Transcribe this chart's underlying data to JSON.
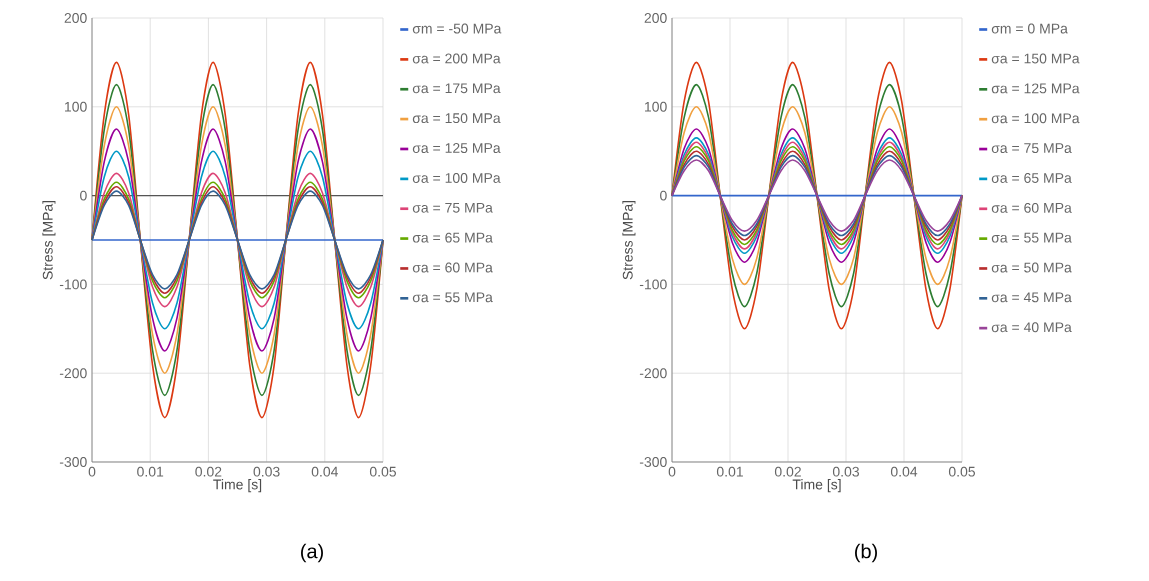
{
  "chart_data": [
    {
      "type": "line",
      "xlabel": "Time [s]",
      "ylabel": "Stress [MPa]",
      "annotations": [
        "(a)"
      ],
      "grid": true,
      "legend": "right",
      "xlim": [
        0,
        0.05
      ],
      "ylim": [
        -300,
        200
      ],
      "xticks": [
        0,
        0.01,
        0.02,
        0.03,
        0.04,
        0.05
      ],
      "yticks": [
        -300,
        -200,
        -100,
        0,
        100,
        200
      ],
      "ref_lines": [
        {
          "axis": "y",
          "value": 0,
          "color": "#555555"
        }
      ],
      "x": [
        0,
        0.0021,
        0.0042,
        0.0063,
        0.0083,
        0.0104,
        0.0125,
        0.0146,
        0.0167,
        0.0188,
        0.0208,
        0.0229,
        0.025,
        0.0271,
        0.0292,
        0.0313,
        0.0333,
        0.0354,
        0.0375,
        0.0396,
        0.0417,
        0.0438,
        0.0458,
        0.0479,
        0.05
      ],
      "series": [
        {
          "name": "σm = -50 MPa",
          "color": "#3366cc",
          "values": [
            -50,
            -50,
            -50,
            -50,
            -50,
            -50,
            -50,
            -50,
            -50,
            -50,
            -50,
            -50,
            -50,
            -50,
            -50,
            -50,
            -50,
            -50,
            -50,
            -50,
            -50,
            -50,
            -50,
            -50,
            -50
          ]
        },
        {
          "name": "σa = 200 MPa",
          "color": "#dc3912",
          "values": [
            -50,
            91,
            150,
            91,
            -50,
            -191,
            -250,
            -191,
            -50,
            91,
            150,
            91,
            -50,
            -191,
            -250,
            -191,
            -50,
            91,
            150,
            91,
            -50,
            -191,
            -250,
            -191,
            -50
          ]
        },
        {
          "name": "σa = 175 MPa",
          "color": "#2e7d32",
          "values": [
            -50,
            74,
            125,
            74,
            -50,
            -174,
            -225,
            -174,
            -50,
            74,
            125,
            74,
            -50,
            -174,
            -225,
            -174,
            -50,
            74,
            125,
            74,
            -50,
            -174,
            -225,
            -174,
            -50
          ]
        },
        {
          "name": "σa = 150 MPa",
          "color": "#f0a040",
          "values": [
            -50,
            56,
            100,
            56,
            -50,
            -156,
            -200,
            -156,
            -50,
            56,
            100,
            56,
            -50,
            -156,
            -200,
            -156,
            -50,
            56,
            100,
            56,
            -50,
            -156,
            -200,
            -156,
            -50
          ]
        },
        {
          "name": "σa = 125 MPa",
          "color": "#990099",
          "values": [
            -50,
            38,
            75,
            38,
            -50,
            -138,
            -175,
            -138,
            -50,
            38,
            75,
            38,
            -50,
            -138,
            -175,
            -138,
            -50,
            38,
            75,
            38,
            -50,
            -138,
            -175,
            -138,
            -50
          ]
        },
        {
          "name": "σa = 100 MPa",
          "color": "#0099c6",
          "values": [
            -50,
            21,
            50,
            21,
            -50,
            -121,
            -150,
            -121,
            -50,
            21,
            50,
            21,
            -50,
            -121,
            -150,
            -121,
            -50,
            21,
            50,
            21,
            -50,
            -121,
            -150,
            -121,
            -50
          ]
        },
        {
          "name": "σa = 75 MPa",
          "color": "#dd4477",
          "values": [
            -50,
            3,
            25,
            3,
            -50,
            -103,
            -125,
            -103,
            -50,
            3,
            25,
            3,
            -50,
            -103,
            -125,
            -103,
            -50,
            3,
            25,
            3,
            -50,
            -103,
            -125,
            -103,
            -50
          ]
        },
        {
          "name": "σa = 65 MPa",
          "color": "#66aa00",
          "values": [
            -50,
            -4,
            15,
            -4,
            -50,
            -96,
            -115,
            -96,
            -50,
            -4,
            15,
            -4,
            -50,
            -96,
            -115,
            -96,
            -50,
            -4,
            15,
            -4,
            -50,
            -96,
            -115,
            -96,
            -50
          ]
        },
        {
          "name": "σa = 60 MPa",
          "color": "#b82e2e",
          "values": [
            -50,
            -8,
            10,
            -8,
            -50,
            -92,
            -110,
            -92,
            -50,
            -8,
            10,
            -8,
            -50,
            -92,
            -110,
            -92,
            -50,
            -8,
            10,
            -8,
            -50,
            -92,
            -110,
            -92,
            -50
          ]
        },
        {
          "name": "σa = 55 MPa",
          "color": "#316395",
          "values": [
            -50,
            -11,
            5,
            -11,
            -50,
            -89,
            -105,
            -89,
            -50,
            -11,
            5,
            -11,
            -50,
            -89,
            -105,
            -89,
            -50,
            -11,
            5,
            -11,
            -50,
            -89,
            -105,
            -89,
            -50
          ]
        }
      ]
    },
    {
      "type": "line",
      "xlabel": "Time [s]",
      "ylabel": "Stress [MPa]",
      "annotations": [
        "(b)"
      ],
      "grid": true,
      "legend": "right",
      "xlim": [
        0,
        0.05
      ],
      "ylim": [
        -300,
        200
      ],
      "xticks": [
        0,
        0.01,
        0.02,
        0.03,
        0.04,
        0.05
      ],
      "yticks": [
        -300,
        -200,
        -100,
        0,
        100,
        200
      ],
      "x": [
        0,
        0.0021,
        0.0042,
        0.0063,
        0.0083,
        0.0104,
        0.0125,
        0.0146,
        0.0167,
        0.0188,
        0.0208,
        0.0229,
        0.025,
        0.0271,
        0.0292,
        0.0313,
        0.0333,
        0.0354,
        0.0375,
        0.0396,
        0.0417,
        0.0438,
        0.0458,
        0.0479,
        0.05
      ],
      "series": [
        {
          "name": "σm = 0 MPa",
          "color": "#3366cc",
          "values": [
            0,
            0,
            0,
            0,
            0,
            0,
            0,
            0,
            0,
            0,
            0,
            0,
            0,
            0,
            0,
            0,
            0,
            0,
            0,
            0,
            0,
            0,
            0,
            0,
            0
          ]
        },
        {
          "name": "σa = 150 MPa",
          "color": "#dc3912",
          "values": [
            0,
            106,
            150,
            106,
            0,
            -106,
            -150,
            -106,
            0,
            106,
            150,
            106,
            0,
            -106,
            -150,
            -106,
            0,
            106,
            150,
            106,
            0,
            -106,
            -150,
            -106,
            0
          ]
        },
        {
          "name": "σa = 125 MPa",
          "color": "#2e7d32",
          "values": [
            0,
            88,
            125,
            88,
            0,
            -88,
            -125,
            -88,
            0,
            88,
            125,
            88,
            0,
            -88,
            -125,
            -88,
            0,
            88,
            125,
            88,
            0,
            -88,
            -125,
            -88,
            0
          ]
        },
        {
          "name": "σa = 100 MPa",
          "color": "#f0a040",
          "values": [
            0,
            71,
            100,
            71,
            0,
            -71,
            -100,
            -71,
            0,
            71,
            100,
            71,
            0,
            -71,
            -100,
            -71,
            0,
            71,
            100,
            71,
            0,
            -71,
            -100,
            -71,
            0
          ]
        },
        {
          "name": "σa = 75 MPa",
          "color": "#990099",
          "values": [
            0,
            53,
            75,
            53,
            0,
            -53,
            -75,
            -53,
            0,
            53,
            75,
            53,
            0,
            -53,
            -75,
            -53,
            0,
            53,
            75,
            53,
            0,
            -53,
            -75,
            -53,
            0
          ]
        },
        {
          "name": "σa = 65 MPa",
          "color": "#0099c6",
          "values": [
            0,
            46,
            65,
            46,
            0,
            -46,
            -65,
            -46,
            0,
            46,
            65,
            46,
            0,
            -46,
            -65,
            -46,
            0,
            46,
            65,
            46,
            0,
            -46,
            -65,
            -46,
            0
          ]
        },
        {
          "name": "σa = 60 MPa",
          "color": "#dd4477",
          "values": [
            0,
            42,
            60,
            42,
            0,
            -42,
            -60,
            -42,
            0,
            42,
            60,
            42,
            0,
            -42,
            -60,
            -42,
            0,
            42,
            60,
            42,
            0,
            -42,
            -60,
            -42,
            0
          ]
        },
        {
          "name": "σa = 55 MPa",
          "color": "#66aa00",
          "values": [
            0,
            39,
            55,
            39,
            0,
            -39,
            -55,
            -39,
            0,
            39,
            55,
            39,
            0,
            -39,
            -55,
            -39,
            0,
            39,
            55,
            39,
            0,
            -39,
            -55,
            -39,
            0
          ]
        },
        {
          "name": "σa = 50 MPa",
          "color": "#b82e2e",
          "values": [
            0,
            35,
            50,
            35,
            0,
            -35,
            -50,
            -35,
            0,
            35,
            50,
            35,
            0,
            -35,
            -50,
            -35,
            0,
            35,
            50,
            35,
            0,
            -35,
            -50,
            -35,
            0
          ]
        },
        {
          "name": "σa = 45 MPa",
          "color": "#316395",
          "values": [
            0,
            32,
            45,
            32,
            0,
            -32,
            -45,
            -32,
            0,
            32,
            45,
            32,
            0,
            -32,
            -45,
            -32,
            0,
            32,
            45,
            32,
            0,
            -32,
            -45,
            -32,
            0
          ]
        },
        {
          "name": "σa = 40 MPa",
          "color": "#994499",
          "values": [
            0,
            28,
            40,
            28,
            0,
            -28,
            -40,
            -28,
            0,
            28,
            40,
            28,
            0,
            -28,
            -40,
            -28,
            0,
            28,
            40,
            28,
            0,
            -28,
            -40,
            -28,
            0
          ]
        }
      ]
    }
  ]
}
